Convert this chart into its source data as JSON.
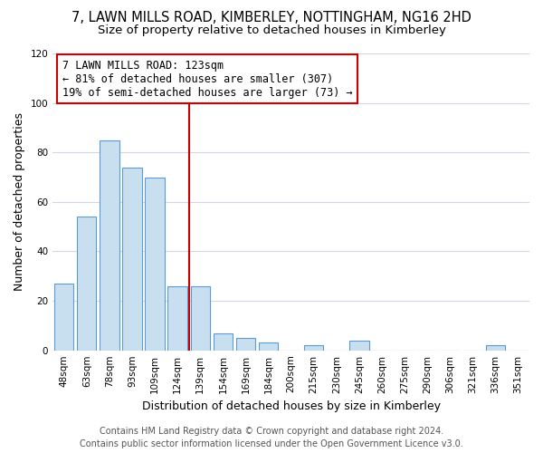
{
  "title": "7, LAWN MILLS ROAD, KIMBERLEY, NOTTINGHAM, NG16 2HD",
  "subtitle": "Size of property relative to detached houses in Kimberley",
  "xlabel": "Distribution of detached houses by size in Kimberley",
  "ylabel": "Number of detached properties",
  "categories": [
    "48sqm",
    "63sqm",
    "78sqm",
    "93sqm",
    "109sqm",
    "124sqm",
    "139sqm",
    "154sqm",
    "169sqm",
    "184sqm",
    "200sqm",
    "215sqm",
    "230sqm",
    "245sqm",
    "260sqm",
    "275sqm",
    "290sqm",
    "306sqm",
    "321sqm",
    "336sqm",
    "351sqm"
  ],
  "values": [
    27,
    54,
    85,
    74,
    70,
    26,
    26,
    7,
    5,
    3,
    0,
    2,
    0,
    4,
    0,
    0,
    0,
    0,
    0,
    2,
    0
  ],
  "bar_color": "#c8dff0",
  "bar_edge_color": "#5b9bd5",
  "highlight_line_color": "#cc0000",
  "annotation_line1": "7 LAWN MILLS ROAD: 123sqm",
  "annotation_line2": "← 81% of detached houses are smaller (307)",
  "annotation_line3": "19% of semi-detached houses are larger (73) →",
  "annotation_box_color": "#ffffff",
  "annotation_box_edge_color": "#cc0000",
  "ylim": [
    0,
    120
  ],
  "yticks": [
    0,
    20,
    40,
    60,
    80,
    100,
    120
  ],
  "footer_line1": "Contains HM Land Registry data © Crown copyright and database right 2024.",
  "footer_line2": "Contains public sector information licensed under the Open Government Licence v3.0.",
  "bg_color": "#ffffff",
  "grid_color": "#d0d8e8",
  "title_fontsize": 10.5,
  "subtitle_fontsize": 9.5,
  "axis_label_fontsize": 9,
  "tick_fontsize": 7.5,
  "annotation_fontsize": 8.5,
  "footer_fontsize": 7
}
